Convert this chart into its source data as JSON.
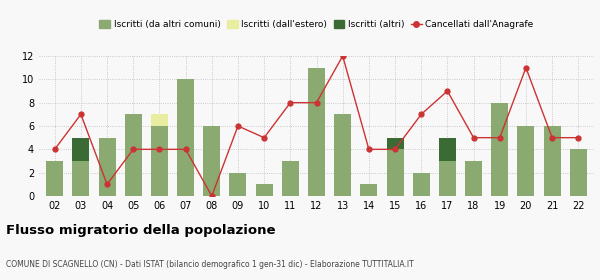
{
  "years": [
    "02",
    "03",
    "04",
    "05",
    "06",
    "07",
    "08",
    "09",
    "10",
    "11",
    "12",
    "13",
    "14",
    "15",
    "16",
    "17",
    "18",
    "19",
    "20",
    "21",
    "22"
  ],
  "iscritti_altri_comuni": [
    3,
    3,
    5,
    7,
    6,
    10,
    6,
    2,
    1,
    3,
    11,
    7,
    1,
    4,
    2,
    3,
    3,
    8,
    6,
    6,
    4
  ],
  "iscritti_estero": [
    0,
    0,
    0,
    0,
    1,
    0,
    0,
    0,
    0,
    0,
    0,
    0,
    0,
    0,
    0,
    0,
    0,
    0,
    0,
    0,
    0
  ],
  "iscritti_altri": [
    0,
    2,
    0,
    0,
    0,
    0,
    0,
    0,
    0,
    0,
    0,
    0,
    0,
    1,
    0,
    2,
    0,
    0,
    0,
    0,
    0
  ],
  "cancellati": [
    4,
    7,
    1,
    4,
    4,
    4,
    0,
    6,
    5,
    8,
    8,
    12,
    4,
    4,
    7,
    9,
    5,
    5,
    11,
    5,
    5
  ],
  "color_comuni": "#8aaa72",
  "color_estero": "#e8eda0",
  "color_altri": "#3a6b35",
  "color_cancel": "#cc3333",
  "title": "Flusso migratorio della popolazione",
  "subtitle": "COMUNE DI SCAGNELLO (CN) - Dati ISTAT (bilancio demografico 1 gen-31 dic) - Elaborazione TUTTITALIA.IT",
  "ylim": [
    0,
    12
  ],
  "yticks": [
    0,
    2,
    4,
    6,
    8,
    10,
    12
  ],
  "legend_labels": [
    "Iscritti (da altri comuni)",
    "Iscritti (dall'estero)",
    "Iscritti (altri)",
    "Cancellati dall'Anagrafe"
  ],
  "bg_color": "#f8f8f8"
}
